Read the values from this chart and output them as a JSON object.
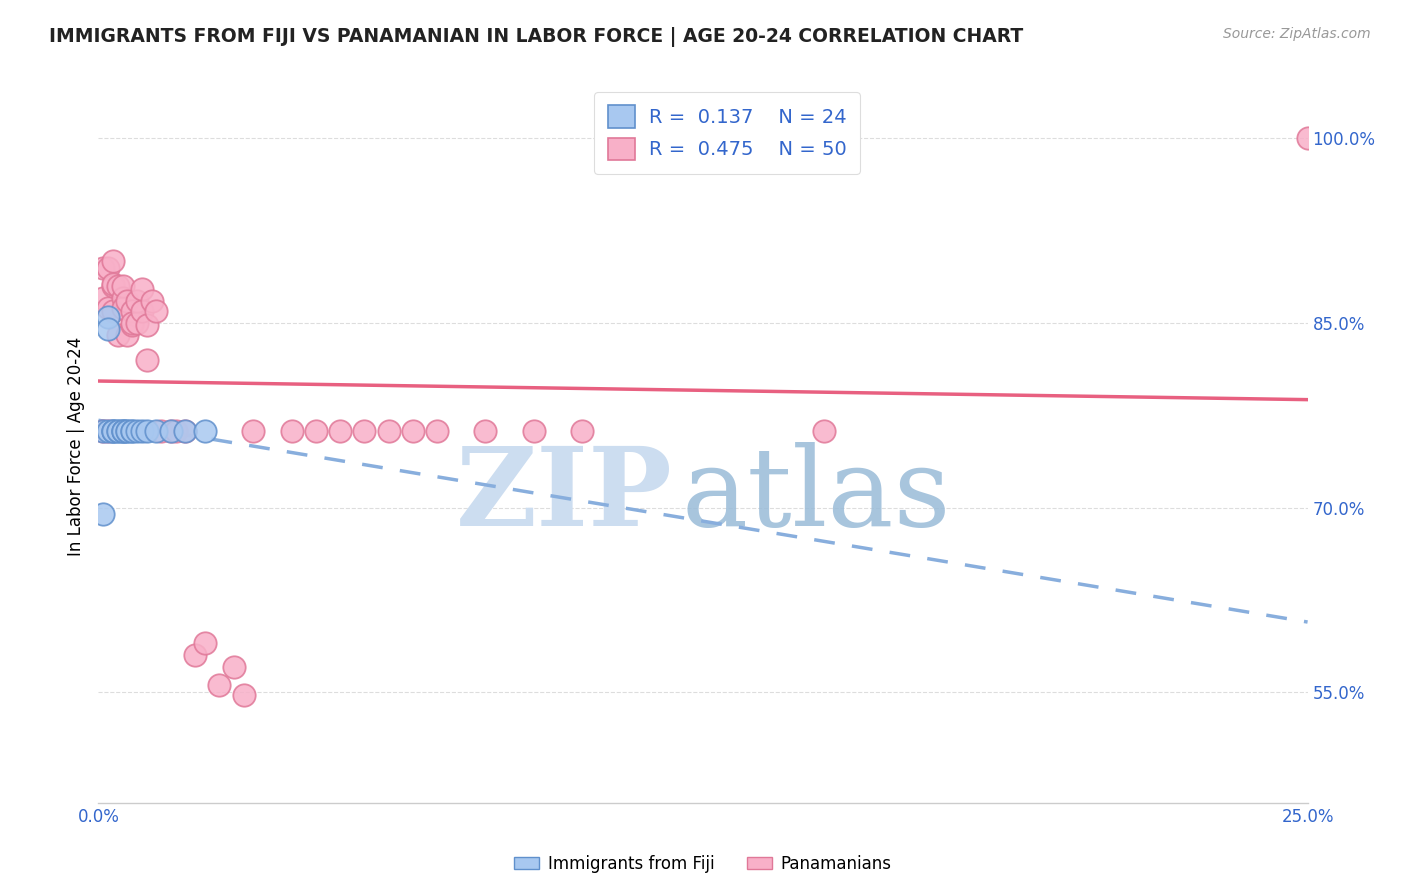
{
  "title": "IMMIGRANTS FROM FIJI VS PANAMANIAN IN LABOR FORCE | AGE 20-24 CORRELATION CHART",
  "source": "Source: ZipAtlas.com",
  "ylabel": "In Labor Force | Age 20-24",
  "ytick_labels": [
    "55.0%",
    "70.0%",
    "85.0%",
    "100.0%"
  ],
  "ytick_values": [
    0.55,
    0.7,
    0.85,
    1.0
  ],
  "xlim": [
    0.0,
    0.25
  ],
  "ylim": [
    0.46,
    1.04
  ],
  "legend_r_fiji": "0.137",
  "legend_n_fiji": "24",
  "legend_r_panama": "0.475",
  "legend_n_panama": "50",
  "fiji_color": "#a8c8f0",
  "fiji_edge": "#6090cc",
  "panama_color": "#f8b0c8",
  "panama_edge": "#e07898",
  "fiji_line_color": "#88aedd",
  "panama_line_color": "#e86080",
  "grid_color": "#dddddd",
  "tick_color": "#3366cc",
  "title_color": "#222222",
  "source_color": "#999999",
  "background_color": "#ffffff",
  "fiji_x": [
    0.001,
    0.001,
    0.002,
    0.002,
    0.002,
    0.003,
    0.003,
    0.003,
    0.004,
    0.004,
    0.005,
    0.005,
    0.005,
    0.006,
    0.006,
    0.007,
    0.007,
    0.008,
    0.009,
    0.01,
    0.012,
    0.015,
    0.018,
    0.022
  ],
  "fiji_y": [
    0.762,
    0.695,
    0.762,
    0.855,
    0.845,
    0.762,
    0.762,
    0.762,
    0.762,
    0.762,
    0.762,
    0.762,
    0.762,
    0.762,
    0.762,
    0.762,
    0.762,
    0.762,
    0.762,
    0.762,
    0.762,
    0.762,
    0.762,
    0.762
  ],
  "panama_x": [
    0.001,
    0.001,
    0.001,
    0.002,
    0.002,
    0.002,
    0.003,
    0.003,
    0.003,
    0.003,
    0.004,
    0.004,
    0.005,
    0.005,
    0.005,
    0.006,
    0.006,
    0.007,
    0.007,
    0.007,
    0.008,
    0.008,
    0.009,
    0.009,
    0.01,
    0.01,
    0.011,
    0.012,
    0.013,
    0.015,
    0.016,
    0.018,
    0.02,
    0.022,
    0.025,
    0.028,
    0.03,
    0.032,
    0.04,
    0.045,
    0.05,
    0.055,
    0.06,
    0.065,
    0.07,
    0.08,
    0.09,
    0.1,
    0.15,
    0.25
  ],
  "panama_y": [
    0.762,
    0.87,
    0.895,
    0.762,
    0.862,
    0.895,
    0.88,
    0.9,
    0.882,
    0.86,
    0.88,
    0.84,
    0.87,
    0.862,
    0.88,
    0.84,
    0.868,
    0.848,
    0.86,
    0.85,
    0.85,
    0.868,
    0.86,
    0.878,
    0.82,
    0.848,
    0.868,
    0.86,
    0.762,
    0.762,
    0.762,
    0.762,
    0.58,
    0.59,
    0.556,
    0.57,
    0.548,
    0.762,
    0.762,
    0.762,
    0.762,
    0.762,
    0.762,
    0.762,
    0.762,
    0.762,
    0.762,
    0.762,
    0.762,
    1.0
  ],
  "watermark_zip": "ZIP",
  "watermark_atlas": "atlas"
}
